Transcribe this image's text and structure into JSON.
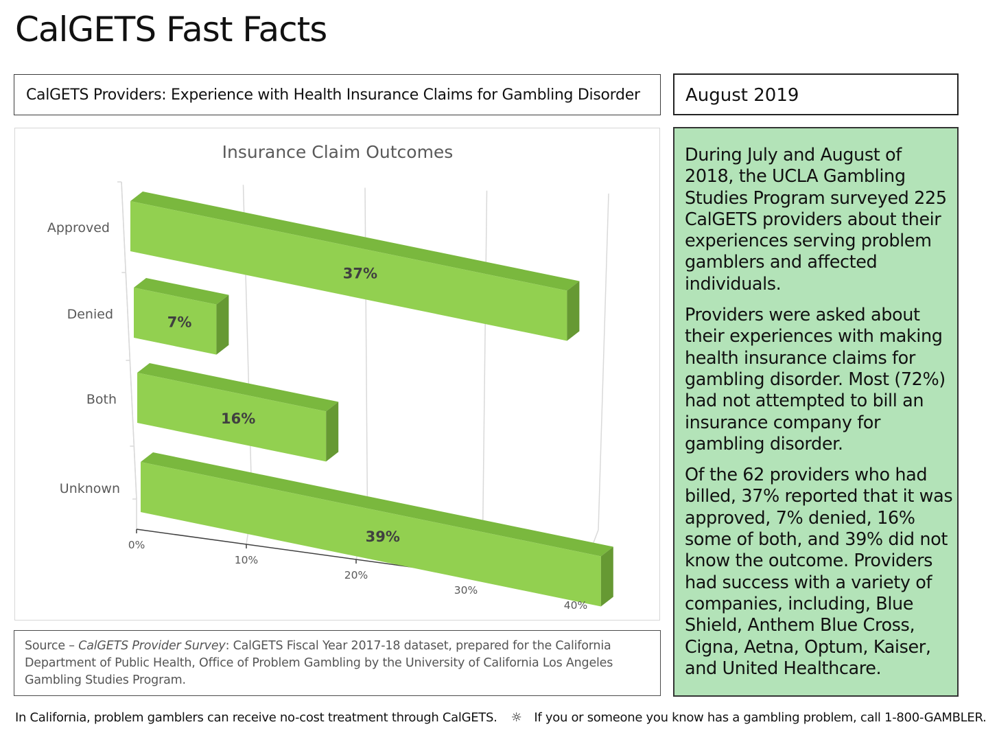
{
  "header": {
    "title": "CalGETS Fast Facts",
    "subtitle": "CalGETS Providers: Experience with Health Insurance Claims for Gambling Disorder",
    "date": "August 2019"
  },
  "chart_data": {
    "type": "bar",
    "orientation": "horizontal",
    "title": "Insurance Claim Outcomes",
    "categories": [
      "Approved",
      "Denied",
      "Both",
      "Unknown"
    ],
    "values": [
      37,
      7,
      16,
      39
    ],
    "data_labels": [
      "37%",
      "7%",
      "16%",
      "39%"
    ],
    "xlim": [
      0,
      40
    ],
    "x_ticks": [
      0,
      10,
      20,
      30,
      40
    ],
    "x_tick_labels": [
      "0%",
      "10%",
      "20%",
      "30%",
      "40%"
    ],
    "grid": true,
    "legend": "none",
    "colors": {
      "bar_front": "#92d050",
      "bar_top": "#7ab83e",
      "bar_side": "#669933"
    }
  },
  "source": {
    "prefix": "Source – ",
    "survey_name": "CalGETS Provider Survey",
    "text": ": CalGETS Fiscal Year 2017-18 dataset, prepared for the California Department of Public Health, Office of Problem Gambling by the University of California Los Angeles Gambling Studies Program."
  },
  "info": {
    "paragraphs": [
      "During July and August of 2018, the UCLA Gambling Studies Program surveyed 225 CalGETS providers about their experiences serving problem gamblers and affected individuals.",
      "Providers were asked about their experiences with making health insurance claims for gambling disorder. Most (72%) had not attempted to bill an insurance company for gambling disorder.",
      "Of the 62 providers who had billed, 37% reported that it was approved, 7% denied, 16% some of both, and 39% did not know the outcome. Providers had success with a variety of companies, including, Blue Shield, Anthem Blue Cross, Cigna, Aetna, Optum, Kaiser, and United Healthcare."
    ]
  },
  "footer": {
    "left": "In California, problem gamblers can receive no-cost treatment through CalGETS.",
    "separator": "☼",
    "right": "If you or someone you know has a gambling problem, call 1-800-GAMBLER."
  }
}
